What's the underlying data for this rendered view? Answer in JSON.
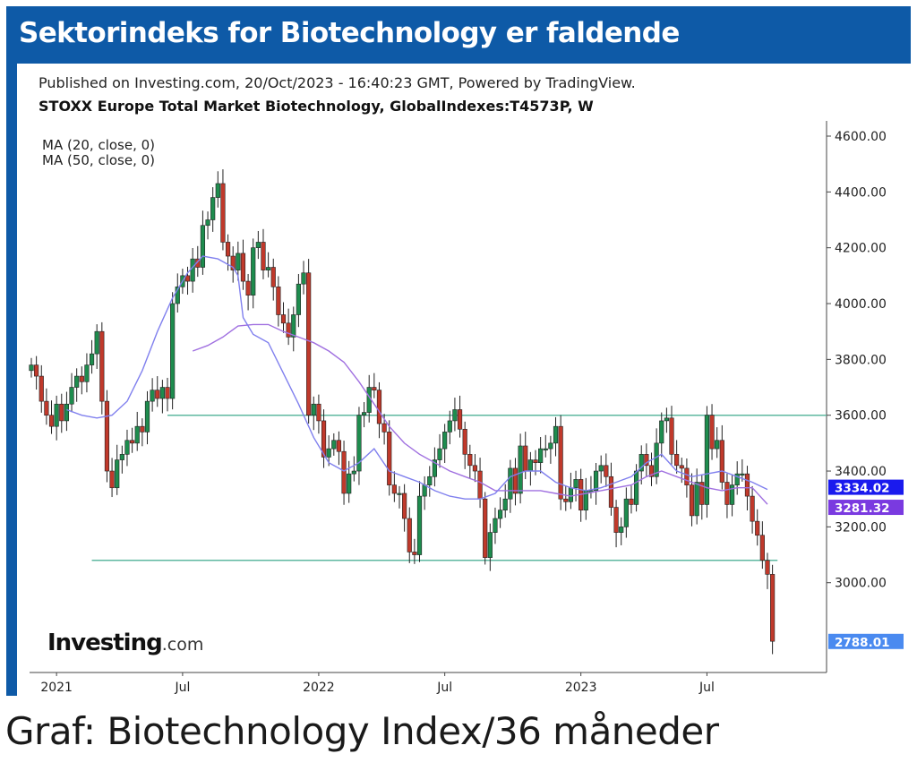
{
  "headline": "Sektorindeks for Biotechnology er faldende",
  "caption": "Graf: Biotechnology Index/36 måneder",
  "published": "Published on Investing.com, 20/Oct/2023 - 16:40:23 GMT, Powered by TradingView.",
  "symbol": "STOXX Europe Total Market Biotechnology, GlobalIndexes:T4573P, W",
  "indicators": [
    "MA (20, close, 0)",
    "MA (50, close, 0)"
  ],
  "logo": {
    "main": "Investing",
    "suffix": ".com"
  },
  "colors": {
    "frame": "#0e5aa7",
    "up": "#1e8c4e",
    "down": "#c0392b",
    "ma20": "#8080ee",
    "ma50": "#a070e0",
    "hline": "#5fb8a0",
    "badge_ma20": "#1a1aee",
    "badge_ma50": "#7a3ae0",
    "badge_last": "#4a8af0"
  },
  "chart_data": {
    "type": "candlestick",
    "title": "STOXX Europe Total Market Biotechnology, GlobalIndexes:T4573P, W",
    "ylim": [
      2720,
      4640
    ],
    "y_ticks": [
      "4600.00",
      "4400.00",
      "4200.00",
      "4000.00",
      "3800.00",
      "3600.00",
      "3400.00",
      "3200.00",
      "3000.00"
    ],
    "y_tick_values": [
      4600,
      4400,
      4200,
      4000,
      3800,
      3600,
      3400,
      3200,
      3000
    ],
    "x_ticks": [
      {
        "label": "2021",
        "week": 5
      },
      {
        "label": "Jul",
        "week": 30
      },
      {
        "label": "2022",
        "week": 57
      },
      {
        "label": "Jul",
        "week": 82
      },
      {
        "label": "2023",
        "week": 109
      },
      {
        "label": "Jul",
        "week": 134
      }
    ],
    "weeks": 148,
    "horizontal_lines": [
      {
        "value": 3600,
        "from_week": 27,
        "to_week": 158
      },
      {
        "value": 3080,
        "from_week": 12,
        "to_week": 148
      }
    ],
    "badges": [
      {
        "label": "3334.02",
        "value": 3334.02,
        "series": "MA (20, close, 0)"
      },
      {
        "label": "3281.32",
        "value": 3281.32,
        "series": "MA (50, close, 0)"
      },
      {
        "label": "2788.01",
        "value": 2788.01,
        "series": "last"
      }
    ],
    "closes": [
      3780,
      3740,
      3650,
      3600,
      3560,
      3640,
      3580,
      3640,
      3700,
      3740,
      3720,
      3780,
      3820,
      3900,
      3650,
      3400,
      3340,
      3440,
      3460,
      3510,
      3500,
      3560,
      3540,
      3650,
      3690,
      3660,
      3700,
      3660,
      4000,
      4060,
      4100,
      4080,
      4160,
      4130,
      4280,
      4300,
      4380,
      4430,
      4220,
      4170,
      4120,
      4180,
      4080,
      4030,
      4200,
      4220,
      4120,
      4130,
      4060,
      3960,
      3930,
      3880,
      3960,
      4070,
      4110,
      3600,
      3640,
      3580,
      3450,
      3480,
      3510,
      3470,
      3320,
      3390,
      3400,
      3600,
      3610,
      3700,
      3690,
      3570,
      3540,
      3350,
      3320,
      3320,
      3230,
      3110,
      3100,
      3310,
      3350,
      3380,
      3440,
      3480,
      3540,
      3580,
      3620,
      3550,
      3460,
      3420,
      3400,
      3300,
      3090,
      3180,
      3230,
      3260,
      3300,
      3410,
      3320,
      3490,
      3400,
      3440,
      3430,
      3480,
      3480,
      3500,
      3560,
      3300,
      3290,
      3340,
      3370,
      3260,
      3330,
      3330,
      3400,
      3420,
      3380,
      3270,
      3180,
      3200,
      3300,
      3280,
      3400,
      3460,
      3420,
      3380,
      3500,
      3580,
      3590,
      3460,
      3420,
      3410,
      3350,
      3240,
      3360,
      3280,
      3600,
      3480,
      3510,
      3360,
      3280,
      3350,
      3390,
      3390,
      3310,
      3220,
      3170,
      3080,
      3030,
      2790
    ],
    "ma20": [
      [
        7,
        3620
      ],
      [
        10,
        3600
      ],
      [
        13,
        3590
      ],
      [
        16,
        3600
      ],
      [
        19,
        3650
      ],
      [
        22,
        3760
      ],
      [
        25,
        3900
      ],
      [
        28,
        4020
      ],
      [
        31,
        4110
      ],
      [
        34,
        4170
      ],
      [
        37,
        4160
      ],
      [
        40,
        4130
      ],
      [
        41,
        4100
      ],
      [
        42,
        3950
      ],
      [
        44,
        3890
      ],
      [
        47,
        3860
      ],
      [
        50,
        3750
      ],
      [
        53,
        3640
      ],
      [
        56,
        3520
      ],
      [
        59,
        3430
      ],
      [
        62,
        3400
      ],
      [
        65,
        3430
      ],
      [
        68,
        3480
      ],
      [
        71,
        3400
      ],
      [
        74,
        3380
      ],
      [
        77,
        3360
      ],
      [
        80,
        3330
      ],
      [
        83,
        3310
      ],
      [
        86,
        3300
      ],
      [
        89,
        3300
      ],
      [
        92,
        3320
      ],
      [
        95,
        3380
      ],
      [
        98,
        3400
      ],
      [
        101,
        3400
      ],
      [
        104,
        3360
      ],
      [
        107,
        3340
      ],
      [
        110,
        3330
      ],
      [
        113,
        3340
      ],
      [
        116,
        3360
      ],
      [
        119,
        3380
      ],
      [
        122,
        3430
      ],
      [
        125,
        3460
      ],
      [
        128,
        3400
      ],
      [
        131,
        3380
      ],
      [
        134,
        3390
      ],
      [
        137,
        3400
      ],
      [
        140,
        3380
      ],
      [
        143,
        3360
      ],
      [
        146,
        3334
      ]
    ],
    "ma50": [
      [
        32,
        3830
      ],
      [
        35,
        3850
      ],
      [
        38,
        3880
      ],
      [
        41,
        3920
      ],
      [
        44,
        3925
      ],
      [
        47,
        3925
      ],
      [
        50,
        3900
      ],
      [
        53,
        3880
      ],
      [
        56,
        3860
      ],
      [
        59,
        3830
      ],
      [
        62,
        3790
      ],
      [
        65,
        3720
      ],
      [
        68,
        3640
      ],
      [
        71,
        3560
      ],
      [
        74,
        3500
      ],
      [
        77,
        3460
      ],
      [
        80,
        3430
      ],
      [
        83,
        3400
      ],
      [
        86,
        3380
      ],
      [
        89,
        3360
      ],
      [
        92,
        3330
      ],
      [
        95,
        3330
      ],
      [
        98,
        3330
      ],
      [
        101,
        3330
      ],
      [
        104,
        3320
      ],
      [
        107,
        3310
      ],
      [
        110,
        3320
      ],
      [
        113,
        3330
      ],
      [
        116,
        3340
      ],
      [
        119,
        3350
      ],
      [
        122,
        3380
      ],
      [
        125,
        3400
      ],
      [
        128,
        3380
      ],
      [
        131,
        3360
      ],
      [
        134,
        3340
      ],
      [
        137,
        3330
      ],
      [
        140,
        3340
      ],
      [
        143,
        3340
      ],
      [
        146,
        3281
      ]
    ]
  }
}
